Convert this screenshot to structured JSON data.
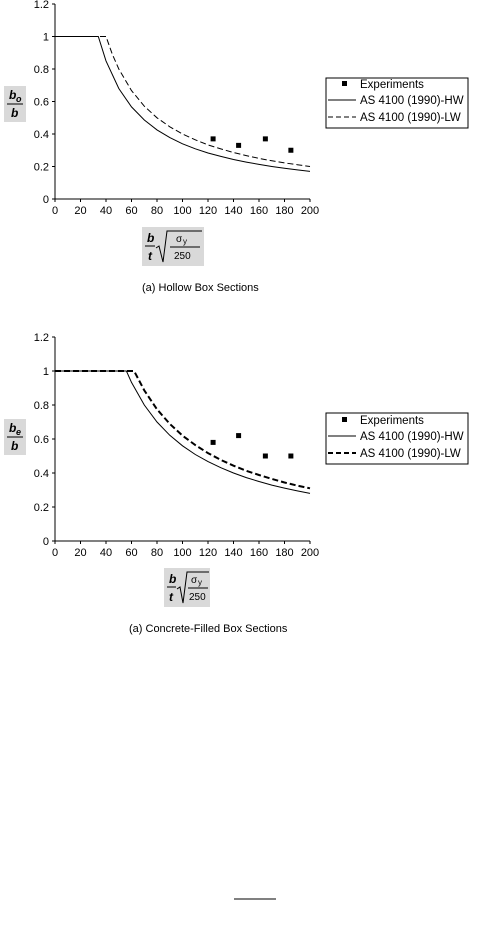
{
  "chart_data": [
    {
      "type": "line",
      "caption": "(a)  Hollow Box Sections",
      "ylabel": {
        "main": "b",
        "sub": "o",
        "den": "b"
      },
      "xlabel": {
        "num": "b",
        "den": "t",
        "sigma": "σ",
        "sigma_sub": "y",
        "radical_den": "250"
      },
      "xlim": [
        0,
        200
      ],
      "ylim": [
        0,
        1.2
      ],
      "x_ticks": [
        "0",
        "20",
        "40",
        "60",
        "80",
        "100",
        "120",
        "140",
        "160",
        "180",
        "200"
      ],
      "y_ticks": [
        "0",
        "0.2",
        "0.4",
        "0.6",
        "0.8",
        "1",
        "1.2"
      ],
      "legend_position": "right",
      "series": [
        {
          "name": "Experiments",
          "kind": "points",
          "x": [
            124,
            144,
            165,
            185
          ],
          "y": [
            0.37,
            0.33,
            0.37,
            0.3
          ]
        },
        {
          "name": "AS 4100 (1990)-HW",
          "kind": "solid",
          "x": [
            0,
            34,
            40,
            50,
            60,
            70,
            80,
            90,
            100,
            110,
            120,
            130,
            140,
            150,
            160,
            170,
            180,
            190,
            200
          ],
          "y": [
            1,
            1,
            0.85,
            0.68,
            0.567,
            0.486,
            0.425,
            0.378,
            0.34,
            0.309,
            0.283,
            0.262,
            0.243,
            0.227,
            0.213,
            0.2,
            0.189,
            0.179,
            0.17
          ]
        },
        {
          "name": "AS 4100 (1990)-LW",
          "kind": "dashed",
          "x": [
            0,
            40,
            45,
            50,
            60,
            70,
            80,
            90,
            100,
            110,
            120,
            130,
            140,
            150,
            160,
            170,
            180,
            190,
            200
          ],
          "y": [
            1,
            1,
            0.889,
            0.8,
            0.667,
            0.571,
            0.5,
            0.444,
            0.4,
            0.364,
            0.333,
            0.308,
            0.286,
            0.267,
            0.25,
            0.235,
            0.222,
            0.211,
            0.2
          ]
        }
      ]
    },
    {
      "type": "line",
      "caption": "(a)  Concrete-Filled Box Sections",
      "ylabel": {
        "main": "b",
        "sub": "e",
        "den": "b"
      },
      "xlabel": {
        "num": "b",
        "den": "t",
        "sigma": "σ",
        "sigma_sub": "y",
        "radical_den": "250"
      },
      "xlim": [
        0,
        200
      ],
      "ylim": [
        0,
        1.2
      ],
      "x_ticks": [
        "0",
        "20",
        "40",
        "60",
        "80",
        "100",
        "120",
        "140",
        "160",
        "180",
        "200"
      ],
      "y_ticks": [
        "0",
        "0.2",
        "0.4",
        "0.6",
        "0.8",
        "1",
        "1.2"
      ],
      "legend_position": "right",
      "series": [
        {
          "name": "Experiments",
          "kind": "points",
          "x": [
            124,
            144,
            165,
            185
          ],
          "y": [
            0.58,
            0.62,
            0.5,
            0.5
          ]
        },
        {
          "name": "AS 4100 (1990)-HW",
          "kind": "solid",
          "x": [
            0,
            56,
            60,
            70,
            80,
            90,
            100,
            110,
            120,
            130,
            140,
            150,
            160,
            170,
            180,
            190,
            200
          ],
          "y": [
            1,
            1,
            0.933,
            0.8,
            0.7,
            0.622,
            0.56,
            0.509,
            0.467,
            0.431,
            0.4,
            0.373,
            0.35,
            0.329,
            0.311,
            0.295,
            0.28
          ]
        },
        {
          "name": "AS 4100 (1990)-LW",
          "kind": "dashed",
          "x": [
            0,
            62,
            70,
            80,
            90,
            100,
            110,
            120,
            130,
            140,
            150,
            160,
            170,
            180,
            190,
            200
          ],
          "y": [
            1,
            1,
            0.886,
            0.775,
            0.689,
            0.62,
            0.564,
            0.517,
            0.477,
            0.443,
            0.413,
            0.388,
            0.365,
            0.344,
            0.326,
            0.31
          ]
        }
      ]
    }
  ]
}
